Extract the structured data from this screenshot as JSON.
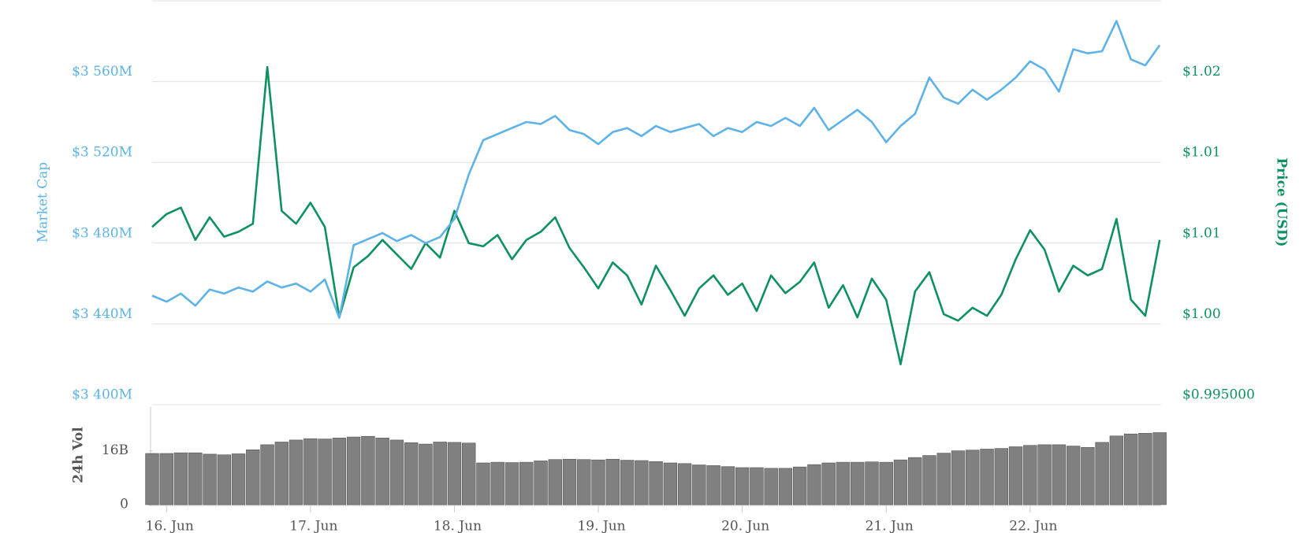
{
  "chart_data": {
    "type": "line",
    "ylabel": "Market Cap",
    "y2label": "Price (USD)",
    "xlim": [
      15.9,
      22.91
    ],
    "xticks": [
      {
        "value": 16,
        "label": "16. Jun"
      },
      {
        "value": 17,
        "label": "17. Jun"
      },
      {
        "value": 18,
        "label": "18. Jun"
      },
      {
        "value": 19,
        "label": "19. Jun"
      },
      {
        "value": 20,
        "label": "20. Jun"
      },
      {
        "value": 21,
        "label": "21. Jun"
      },
      {
        "value": 22,
        "label": "22. Jun"
      }
    ],
    "ylim": [
      3400,
      3600
    ],
    "yticks": [
      {
        "value": 3400,
        "label": "$3 400M"
      },
      {
        "value": 3440,
        "label": "$3 440M"
      },
      {
        "value": 3480,
        "label": "$3 480M"
      },
      {
        "value": 3520,
        "label": "$3 520M"
      },
      {
        "value": 3560,
        "label": "$3 560M"
      }
    ],
    "y2lim": [
      0.995,
      1.02
    ],
    "y2ticks": [
      {
        "value": 0.995,
        "label": "$0.995000"
      },
      {
        "value": 1.0,
        "label": "$1.00"
      },
      {
        "value": 1.005,
        "label": "$1.01"
      },
      {
        "value": 1.01,
        "label": "$1.01"
      },
      {
        "value": 1.015,
        "label": "$1.02"
      }
    ],
    "grid": true,
    "x": [
      15.9,
      16.0,
      16.1,
      16.2,
      16.3,
      16.4,
      16.5,
      16.6,
      16.7,
      16.8,
      16.9,
      17.0,
      17.1,
      17.2,
      17.3,
      17.4,
      17.5,
      17.6,
      17.7,
      17.8,
      17.9,
      18.0,
      18.1,
      18.2,
      18.3,
      18.4,
      18.5,
      18.6,
      18.7,
      18.8,
      18.9,
      19.0,
      19.1,
      19.2,
      19.3,
      19.4,
      19.5,
      19.6,
      19.7,
      19.8,
      19.9,
      20.0,
      20.1,
      20.2,
      20.3,
      20.4,
      20.5,
      20.6,
      20.7,
      20.8,
      20.9,
      21.0,
      21.1,
      21.2,
      21.3,
      21.4,
      21.5,
      21.6,
      21.7,
      21.8,
      21.9,
      22.0,
      22.1,
      22.2,
      22.3,
      22.4,
      22.5,
      22.6,
      22.7,
      22.8,
      22.9
    ],
    "series": [
      {
        "color": "#5db3e8",
        "values": [
          3454,
          3451,
          3455,
          3449,
          3457,
          3455,
          3458,
          3456,
          3461,
          3458,
          3460,
          3456,
          3462,
          3443,
          3479,
          3482,
          3485,
          3481,
          3484,
          3480,
          3483,
          3492,
          3514,
          3531,
          3534,
          3537,
          3540,
          3539,
          3543,
          3536,
          3534,
          3529,
          3535,
          3537,
          3533,
          3538,
          3535,
          3537,
          3539,
          3533,
          3537,
          3535,
          3540,
          3538,
          3542,
          3538,
          3547,
          3536,
          3541,
          3546,
          3540,
          3530,
          3538,
          3544,
          3562,
          3552,
          3549,
          3556,
          3551,
          3556,
          3562,
          3570,
          3566,
          3555,
          3576,
          3574,
          3575,
          3590,
          3571,
          3568,
          3578
        ]
      },
      {
        "color": "#0e9160",
        "axis": "y2",
        "values": [
          1.006,
          1.0068,
          1.0072,
          1.0052,
          1.0066,
          1.0054,
          1.0057,
          1.0062,
          1.0159,
          1.007,
          1.0062,
          1.0075,
          1.006,
          1.0004,
          1.0035,
          1.0042,
          1.0052,
          1.0043,
          1.0034,
          1.005,
          1.0041,
          1.007,
          1.005,
          1.0048,
          1.0055,
          1.004,
          1.0052,
          1.0057,
          1.0066,
          1.0047,
          1.0035,
          1.0022,
          1.0038,
          1.003,
          1.0012,
          1.0036,
          1.0021,
          1.0005,
          1.0022,
          1.003,
          1.0018,
          1.0025,
          1.0008,
          1.003,
          1.0019,
          1.0026,
          1.0038,
          1.001,
          1.0024,
          1.0004,
          1.0028,
          1.0015,
          0.9975,
          1.002,
          1.0032,
          1.0006,
          1.0002,
          1.001,
          1.0005,
          1.0018,
          1.004,
          1.0058,
          1.0046,
          1.002,
          1.0036,
          1.003,
          1.0034,
          1.0065,
          1.0015,
          1.0005,
          1.0052
        ]
      }
    ],
    "volume": {
      "label": "24h Vol",
      "color": "#808080",
      "ylim": [
        0,
        29
      ],
      "yticks": [
        0,
        {
          "value": 16,
          "label": "16B"
        }
      ],
      "values": [
        15.2,
        15.2,
        15.4,
        15.4,
        15.0,
        14.8,
        15.1,
        16.3,
        17.8,
        18.6,
        19.2,
        19.6,
        19.5,
        19.8,
        20.1,
        20.3,
        19.8,
        19.2,
        18.4,
        18.0,
        18.6,
        18.5,
        18.3,
        12.4,
        12.6,
        12.5,
        12.6,
        13.0,
        13.4,
        13.5,
        13.4,
        13.3,
        13.5,
        13.2,
        13.1,
        12.8,
        12.4,
        12.2,
        11.8,
        11.6,
        11.3,
        11.0,
        11.0,
        10.8,
        10.8,
        11.2,
        11.9,
        12.4,
        12.6,
        12.6,
        12.7,
        12.6,
        13.3,
        14.0,
        14.6,
        15.3,
        16.0,
        16.2,
        16.5,
        16.7,
        17.2,
        17.6,
        17.8,
        17.8,
        17.4,
        17.0,
        18.5,
        20.4,
        21.0,
        21.2,
        21.4
      ]
    }
  }
}
